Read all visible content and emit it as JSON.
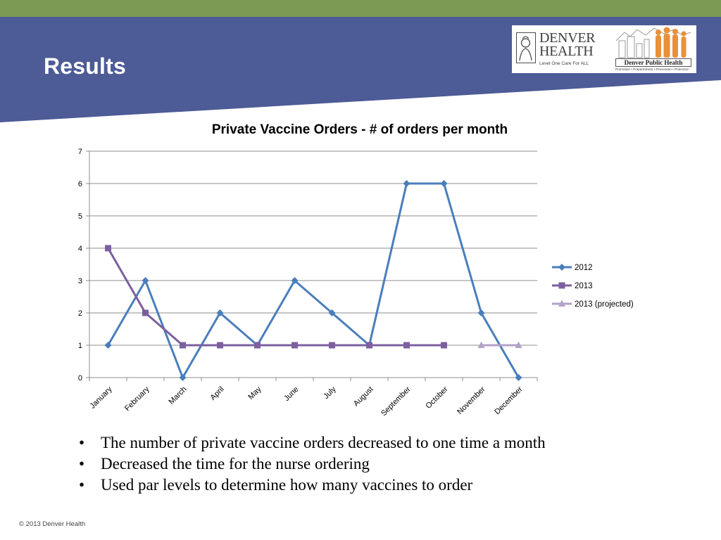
{
  "slide": {
    "title": "Results",
    "footer": "© 2013 Denver Health",
    "colors": {
      "header_band": "#4d5b96",
      "top_stripe": "#7d9a54"
    }
  },
  "logos": {
    "denver_health": {
      "name": "DENVER\nHEALTH",
      "tagline": "Level One Care For ALL"
    },
    "denver_public_health": {
      "name": "Denver Public Health",
      "tagline": "Promotion • Preparedness • Prevention • Protection"
    }
  },
  "bullets": [
    "The number of private vaccine orders decreased to one time a month",
    "Decreased the time for the nurse ordering",
    "Used par levels to determine how many vaccines to order"
  ],
  "chart_data": {
    "type": "line",
    "title": "Private Vaccine Orders - # of orders per month",
    "xlabel": "",
    "ylabel": "",
    "categories": [
      "January",
      "February",
      "March",
      "April",
      "May",
      "June",
      "July",
      "August",
      "September",
      "October",
      "November",
      "December"
    ],
    "yticks": [
      "0",
      "1",
      "2",
      "3",
      "4",
      "5",
      "6",
      "7"
    ],
    "ylim": [
      0,
      7
    ],
    "grid": true,
    "legend_position": "right",
    "series": [
      {
        "name": "2012",
        "color": "#4a7ebb",
        "marker": "diamond",
        "values": [
          1,
          3,
          0,
          2,
          1,
          3,
          2,
          1,
          6,
          6,
          2,
          0
        ]
      },
      {
        "name": "2013",
        "color": "#7d5fa0",
        "marker": "square",
        "values": [
          4,
          2,
          1,
          1,
          1,
          1,
          1,
          1,
          1,
          1,
          null,
          null
        ]
      },
      {
        "name": "2013 (projected)",
        "color": "#b3a2c7",
        "marker": "triangle",
        "values": [
          null,
          null,
          null,
          null,
          null,
          null,
          null,
          null,
          null,
          null,
          1,
          1
        ]
      }
    ]
  }
}
